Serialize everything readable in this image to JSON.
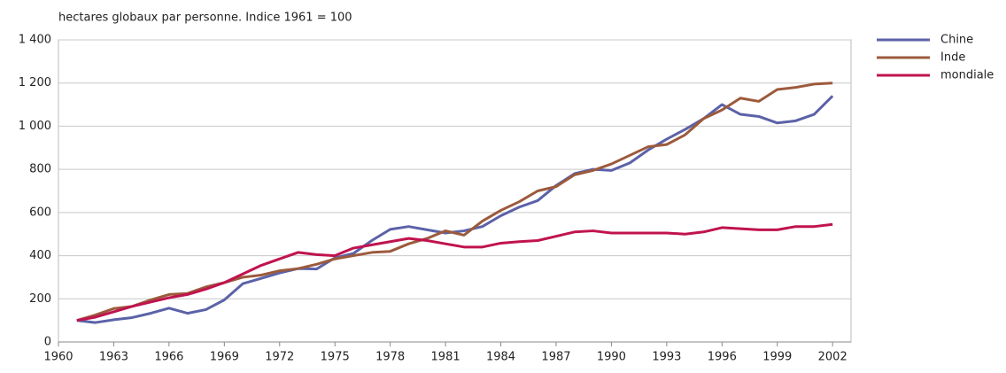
{
  "chart_data": {
    "type": "line",
    "y_label": "hectares globaux par personne. Indice 1961 = 100",
    "x": [
      1961,
      1962,
      1963,
      1964,
      1965,
      1966,
      1967,
      1968,
      1969,
      1970,
      1971,
      1972,
      1973,
      1974,
      1975,
      1976,
      1977,
      1978,
      1979,
      1980,
      1981,
      1982,
      1983,
      1984,
      1985,
      1986,
      1987,
      1988,
      1989,
      1990,
      1991,
      1992,
      1993,
      1994,
      1995,
      1996,
      1997,
      1998,
      1999,
      2000,
      2001,
      2002
    ],
    "series": [
      {
        "name": "Chine",
        "color": "#5b62a8",
        "values": [
          100,
          90,
          103,
          113,
          133,
          157,
          133,
          150,
          195,
          270,
          295,
          320,
          340,
          338,
          390,
          410,
          470,
          522,
          535,
          520,
          505,
          515,
          535,
          585,
          625,
          655,
          725,
          780,
          800,
          795,
          830,
          890,
          940,
          985,
          1035,
          1100,
          1055,
          1045,
          1015,
          1025,
          1055,
          1140
        ]
      },
      {
        "name": "Inde",
        "color": "#9c5a3c",
        "values": [
          100,
          125,
          155,
          165,
          195,
          220,
          225,
          255,
          275,
          300,
          310,
          330,
          340,
          360,
          385,
          400,
          415,
          420,
          455,
          480,
          515,
          495,
          560,
          610,
          650,
          700,
          720,
          775,
          795,
          825,
          865,
          905,
          915,
          960,
          1035,
          1075,
          1130,
          1115,
          1170,
          1180,
          1195,
          1200
        ]
      },
      {
        "name": "mondiale",
        "color": "#c0134f",
        "values": [
          100,
          115,
          140,
          165,
          185,
          205,
          220,
          245,
          275,
          315,
          355,
          385,
          415,
          405,
          400,
          435,
          450,
          465,
          480,
          470,
          455,
          440,
          440,
          458,
          465,
          470,
          490,
          510,
          515,
          505,
          505,
          505,
          505,
          500,
          510,
          530,
          525,
          520,
          520,
          535,
          535,
          545
        ]
      }
    ],
    "xlim": [
      1960,
      2003
    ],
    "xticks": [
      1960,
      1963,
      1966,
      1969,
      1972,
      1975,
      1978,
      1981,
      1984,
      1987,
      1990,
      1993,
      1996,
      1999,
      2002
    ],
    "ylim": [
      0,
      1400
    ],
    "yticks": [
      0,
      200,
      400,
      600,
      800,
      {
        "value": 1000,
        "label": "1 000"
      },
      {
        "value": 1200,
        "label": "1 200"
      },
      {
        "value": 1400,
        "label": "1 400"
      }
    ],
    "grid": true,
    "legend": "right"
  }
}
